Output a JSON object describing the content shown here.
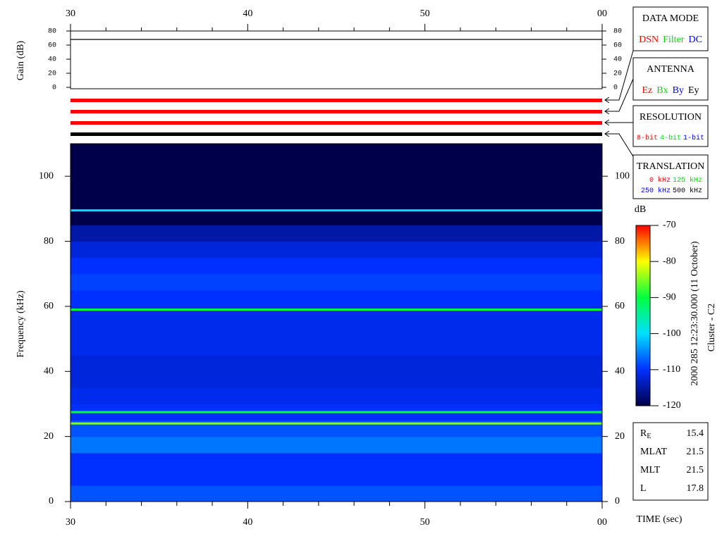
{
  "chart_data": [
    {
      "type": "line",
      "ylabel": "Gain (dB)",
      "xlim": [
        30,
        60
      ],
      "xticks": [
        30,
        40,
        50,
        {
          "value": 60,
          "label": "00"
        }
      ],
      "xminorticks": [
        32,
        34,
        36,
        38,
        42,
        44,
        46,
        48,
        52,
        54,
        56,
        58
      ],
      "ylim": [
        0,
        80
      ],
      "yticks": [
        0,
        20,
        40,
        60,
        80
      ],
      "series": [
        {
          "color": "#000000",
          "x": [
            30,
            60
          ],
          "values": [
            68,
            68
          ]
        }
      ],
      "status_bar_colors": [
        "#ff0000",
        "#ff0000",
        "#ff0000",
        "#000000"
      ]
    },
    {
      "type": "heatmap",
      "ylabel": "Frequency (kHz)",
      "xlabel": "TIME (sec)",
      "xlim": [
        30,
        60
      ],
      "xticks": [
        30,
        40,
        50,
        {
          "value": 60,
          "label": "00"
        }
      ],
      "xminorticks": [
        32,
        34,
        36,
        38,
        42,
        44,
        46,
        48,
        52,
        54,
        56,
        58
      ],
      "ylim": [
        0,
        110
      ],
      "yticks": [
        0,
        20,
        40,
        60,
        80,
        100
      ],
      "ybins": [
        0,
        5,
        10,
        15,
        20,
        25,
        30,
        35,
        40,
        45,
        50,
        55,
        60,
        65,
        70,
        75,
        80,
        85,
        90,
        95,
        100,
        105,
        110
      ],
      "values": [
        -108,
        -110,
        -110,
        -106,
        -108,
        -110,
        -111,
        -112,
        -112,
        -111,
        -111,
        -111,
        -110,
        -109,
        -110,
        -112,
        -115,
        -120,
        -120,
        -120,
        -120,
        -120
      ],
      "tones": {
        "frequencies": [
          89.5,
          59,
          27.5,
          24
        ],
        "values": [
          -100,
          -90,
          -90,
          -85
        ]
      },
      "colorbar": {
        "label": "dB",
        "lim": [
          -120,
          -70
        ],
        "ticks": [
          -70,
          -80,
          -90,
          -100,
          -110,
          -120
        ],
        "colors": [
          "#00004a",
          "#0030ff",
          "#00e0ff",
          "#00ff40",
          "#ffff00",
          "#ff0000"
        ]
      }
    }
  ],
  "legends": [
    {
      "title": "DATA MODE",
      "rows": [
        [
          {
            "text": "DSN",
            "color": "#ff0000"
          },
          {
            "text": "Filter",
            "color": "#00e000"
          },
          {
            "text": "DC",
            "color": "#0000ff"
          }
        ]
      ]
    },
    {
      "title": "ANTENNA",
      "rows": [
        [
          {
            "text": "Ez",
            "color": "#ff0000"
          },
          {
            "text": "Bx",
            "color": "#00e000"
          },
          {
            "text": "By",
            "color": "#0000ff"
          },
          {
            "text": "Ey",
            "color": "#000000"
          }
        ]
      ]
    },
    {
      "title": "RESOLUTION",
      "rows": [
        [
          {
            "text": "8-bit",
            "color": "#ff0000"
          },
          {
            "text": "4-bit",
            "color": "#00e000"
          },
          {
            "text": "1-bit",
            "color": "#0000ff"
          }
        ]
      ]
    },
    {
      "title": "TRANSLATION",
      "rows": [
        [
          {
            "text": "0 kHz",
            "color": "#ff0000"
          },
          {
            "text": "125 kHz",
            "color": "#00e000"
          }
        ],
        [
          {
            "text": "250 kHz",
            "color": "#0000ff"
          },
          {
            "text": "500 kHz",
            "color": "#000000"
          }
        ]
      ]
    }
  ],
  "side_text": [
    "2000 285 12:23:30.000 (11 October)",
    "Cluster - C2"
  ],
  "info": [
    {
      "label": "R",
      "sub": "E",
      "value": 15.4
    },
    {
      "label": "MLAT",
      "value": 21.5
    },
    {
      "label": "MLT",
      "value": 21.5
    },
    {
      "label": "L",
      "value": 17.8
    }
  ]
}
